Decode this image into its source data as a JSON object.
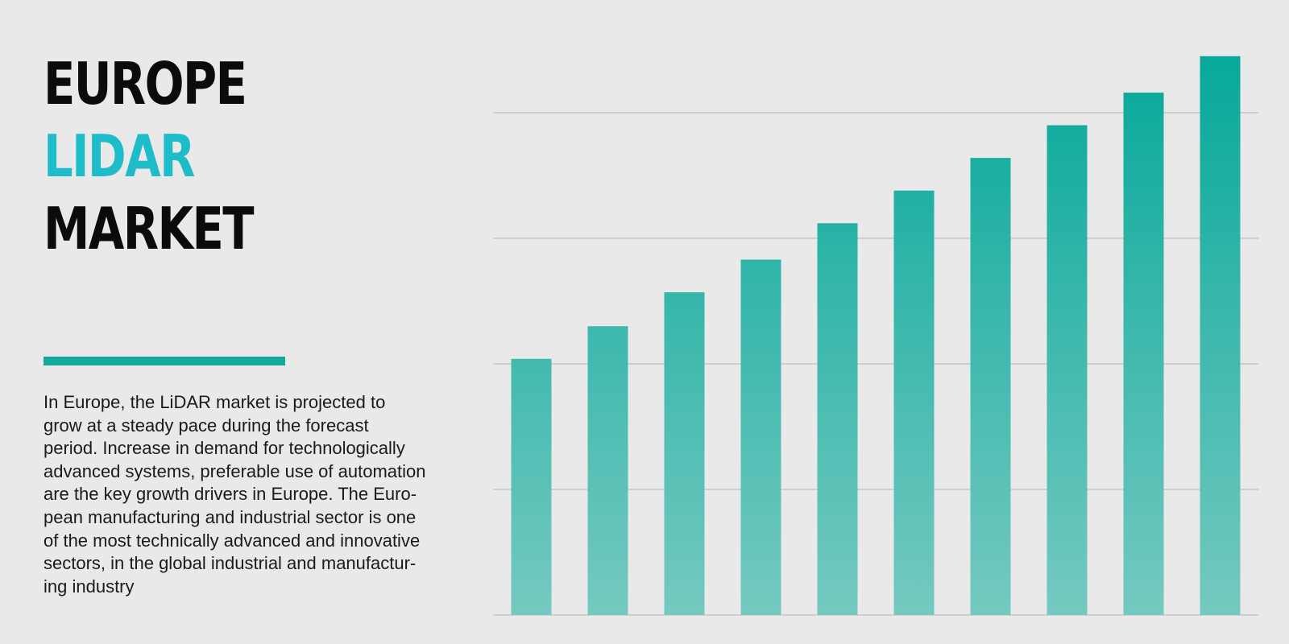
{
  "title": {
    "line1": "EUROPE",
    "line2": "LIDAR",
    "line3": "MARKET"
  },
  "description_lines": [
    "In Europe, the LiDAR market is projected to",
    "grow at a steady pace during the forecast",
    "period. Increase in demand for technologically",
    "advanced systems, preferable use of automation",
    "are the key growth drivers in Europe. The Euro-",
    "pean manufacturing and industrial sector is one",
    "of the most technically advanced and innovative",
    "sectors, in the global industrial and manufactur-",
    "ing industry"
  ],
  "colors": {
    "title_dark": "#0b0b0b",
    "title_accent": "#1dbcc8",
    "accent_bar": "#14a99d",
    "bar_top": "#05a89a",
    "bar_bottom": "#75c9c0",
    "gridline": "#cfcfcf",
    "background": "#e9e9e9"
  },
  "chart_data": {
    "type": "bar",
    "title": "",
    "xlabel": "",
    "ylabel": "",
    "categories": [
      "",
      "",
      "",
      "",
      "",
      "",
      "",
      "",
      "",
      ""
    ],
    "values": [
      2.04,
      2.3,
      2.57,
      2.83,
      3.12,
      3.38,
      3.64,
      3.9,
      4.16,
      4.45
    ],
    "ylim": [
      0,
      4.5
    ],
    "grid": true,
    "legend": "none"
  }
}
